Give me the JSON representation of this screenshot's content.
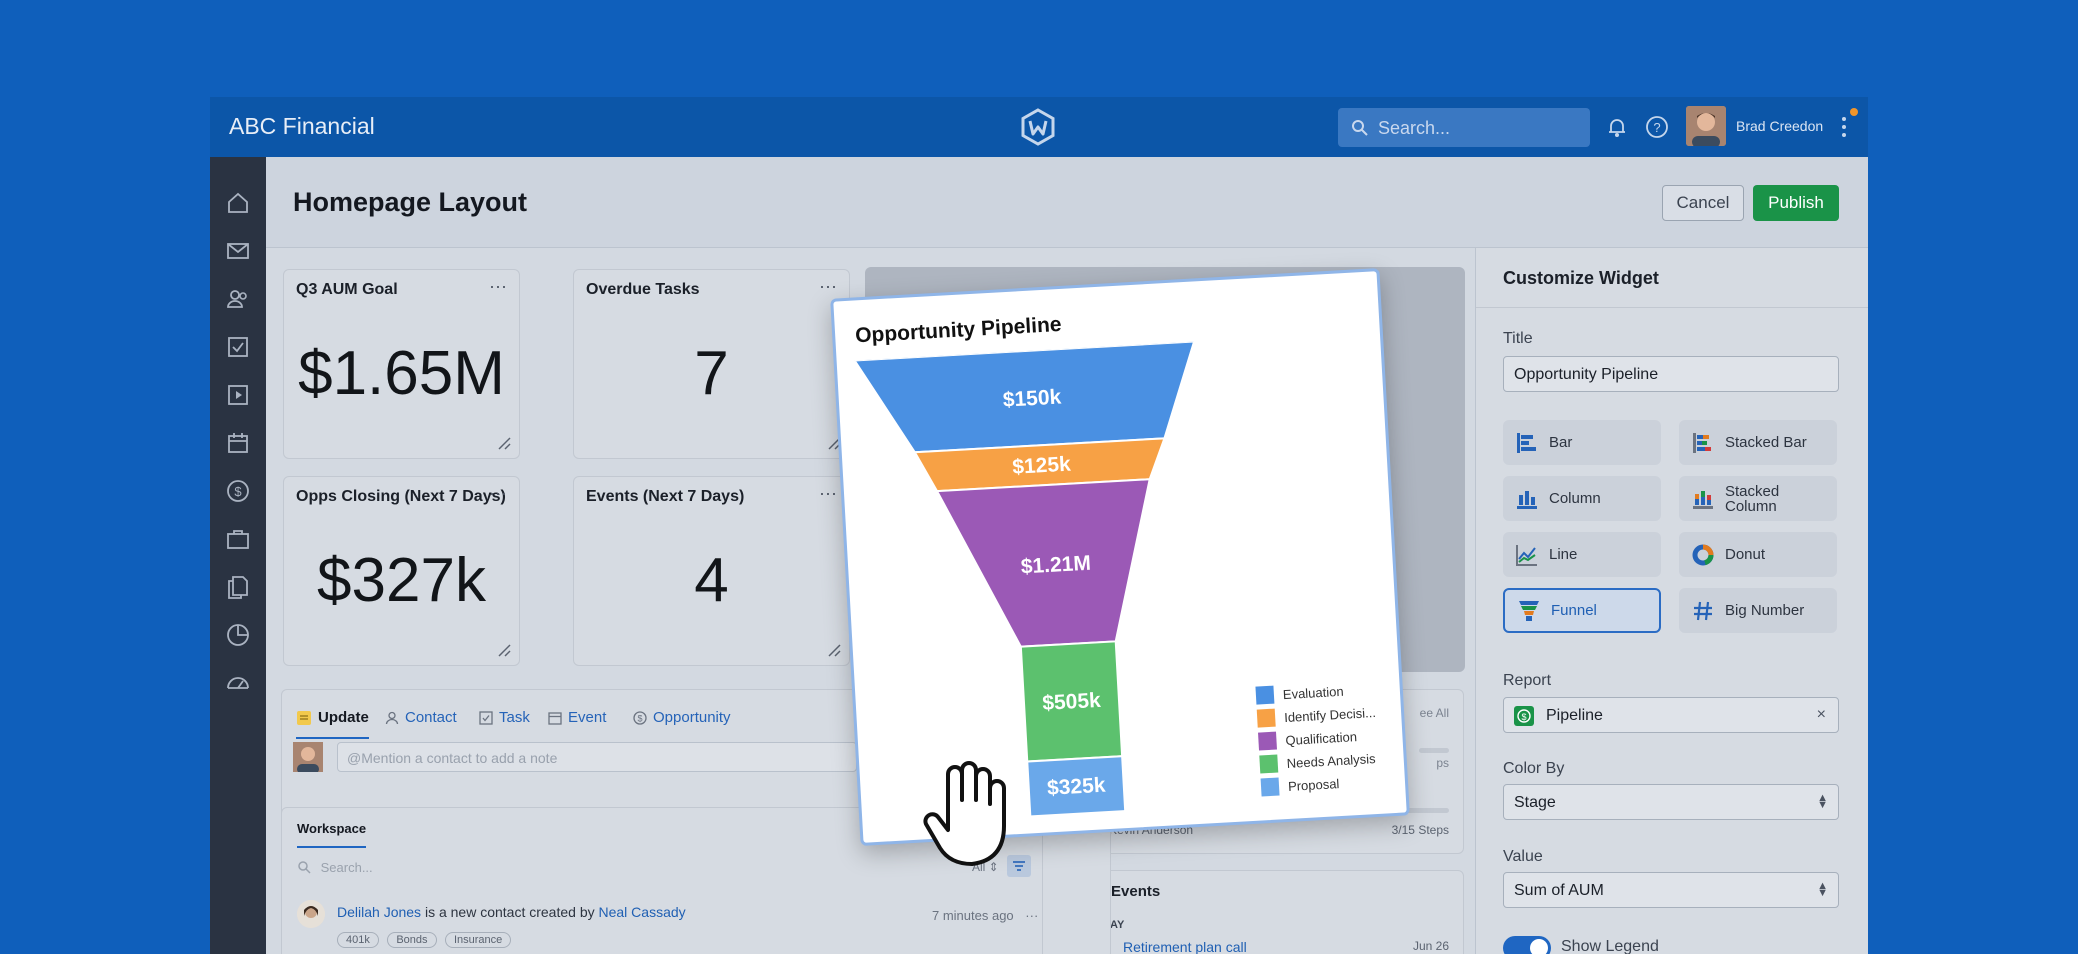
{
  "topbar": {
    "brand": "ABC Financial",
    "search_placeholder": "Search...",
    "user_name": "Brad Creedon"
  },
  "header": {
    "title": "Homepage Layout",
    "cancel_label": "Cancel",
    "publish_label": "Publish"
  },
  "sidebar": {
    "icons": [
      "home-icon",
      "mail-icon",
      "contacts-icon",
      "tasks-icon",
      "play-icon",
      "calendar-icon",
      "dollar-icon",
      "briefcase-icon",
      "documents-icon",
      "pie-chart-icon",
      "dashboard-icon"
    ]
  },
  "cards": [
    {
      "title": "Q3 AUM Goal",
      "value": "$1.65M"
    },
    {
      "title": "Overdue Tasks",
      "value": "7"
    },
    {
      "title": "Opps Closing (Next 7 Days)",
      "value": "$327k"
    },
    {
      "title": "Events (Next 7 Days)",
      "value": "4"
    }
  ],
  "feed": {
    "tabs": [
      "Update",
      "Contact",
      "Task",
      "Event",
      "Opportunity"
    ],
    "note_placeholder": "@Mention a contact to add a note"
  },
  "workspace": {
    "tab": "Workspace",
    "search_placeholder": "Search...",
    "filter_value": "All",
    "item": {
      "name": "Delilah Jones",
      "text": " is a new contact created by ",
      "creator": "Neal Cassady",
      "time": "7 minutes ago",
      "tags": [
        "401k",
        "Bonds",
        "Insurance"
      ]
    }
  },
  "right_cards": {
    "see_all": "ee All",
    "steps_1": "ps",
    "contact": "Re: Kevin Anderson",
    "steps_2": "3/15 Steps",
    "events_title": "Events",
    "today": "TODAY",
    "event_name": "Retirement plan call",
    "event_date": "Jun 26",
    "event_day": "26"
  },
  "panel": {
    "title": "Customize Widget",
    "title_label": "Title",
    "title_value": "Opportunity Pipeline",
    "types": [
      {
        "label": "Bar",
        "icon": "bar-chart-icon"
      },
      {
        "label": "Stacked Bar",
        "icon": "stacked-bar-icon"
      },
      {
        "label": "Column",
        "icon": "column-chart-icon"
      },
      {
        "label": "Stacked Column",
        "icon": "stacked-column-icon"
      },
      {
        "label": "Line",
        "icon": "line-chart-icon"
      },
      {
        "label": "Donut",
        "icon": "donut-chart-icon"
      },
      {
        "label": "Funnel",
        "icon": "funnel-chart-icon",
        "selected": true
      },
      {
        "label": "Big Number",
        "icon": "hash-icon"
      }
    ],
    "report_label": "Report",
    "report_value": "Pipeline",
    "color_by_label": "Color By",
    "color_by_value": "Stage",
    "value_label": "Value",
    "value_value": "Sum of AUM",
    "legend_label": "Show Legend"
  },
  "chart_data": {
    "type": "funnel",
    "title": "Opportunity Pipeline",
    "categories": [
      "Evaluation",
      "Identify Decisi...",
      "Qualification",
      "Needs Analysis",
      "Proposal"
    ],
    "values": [
      150,
      125,
      1210,
      505,
      325
    ],
    "value_labels": [
      "$150k",
      "$125k",
      "$1.21M",
      "$505k",
      "$325k"
    ],
    "colors": [
      "#4a90e2",
      "#f7a145",
      "#9b59b6",
      "#5cc16e",
      "#6aa8ea"
    ],
    "legend": "bottom-right"
  },
  "colors": {
    "brand_blue": "#0c56a8",
    "publish_green": "#1a9348",
    "accent": "#1f66c2"
  }
}
